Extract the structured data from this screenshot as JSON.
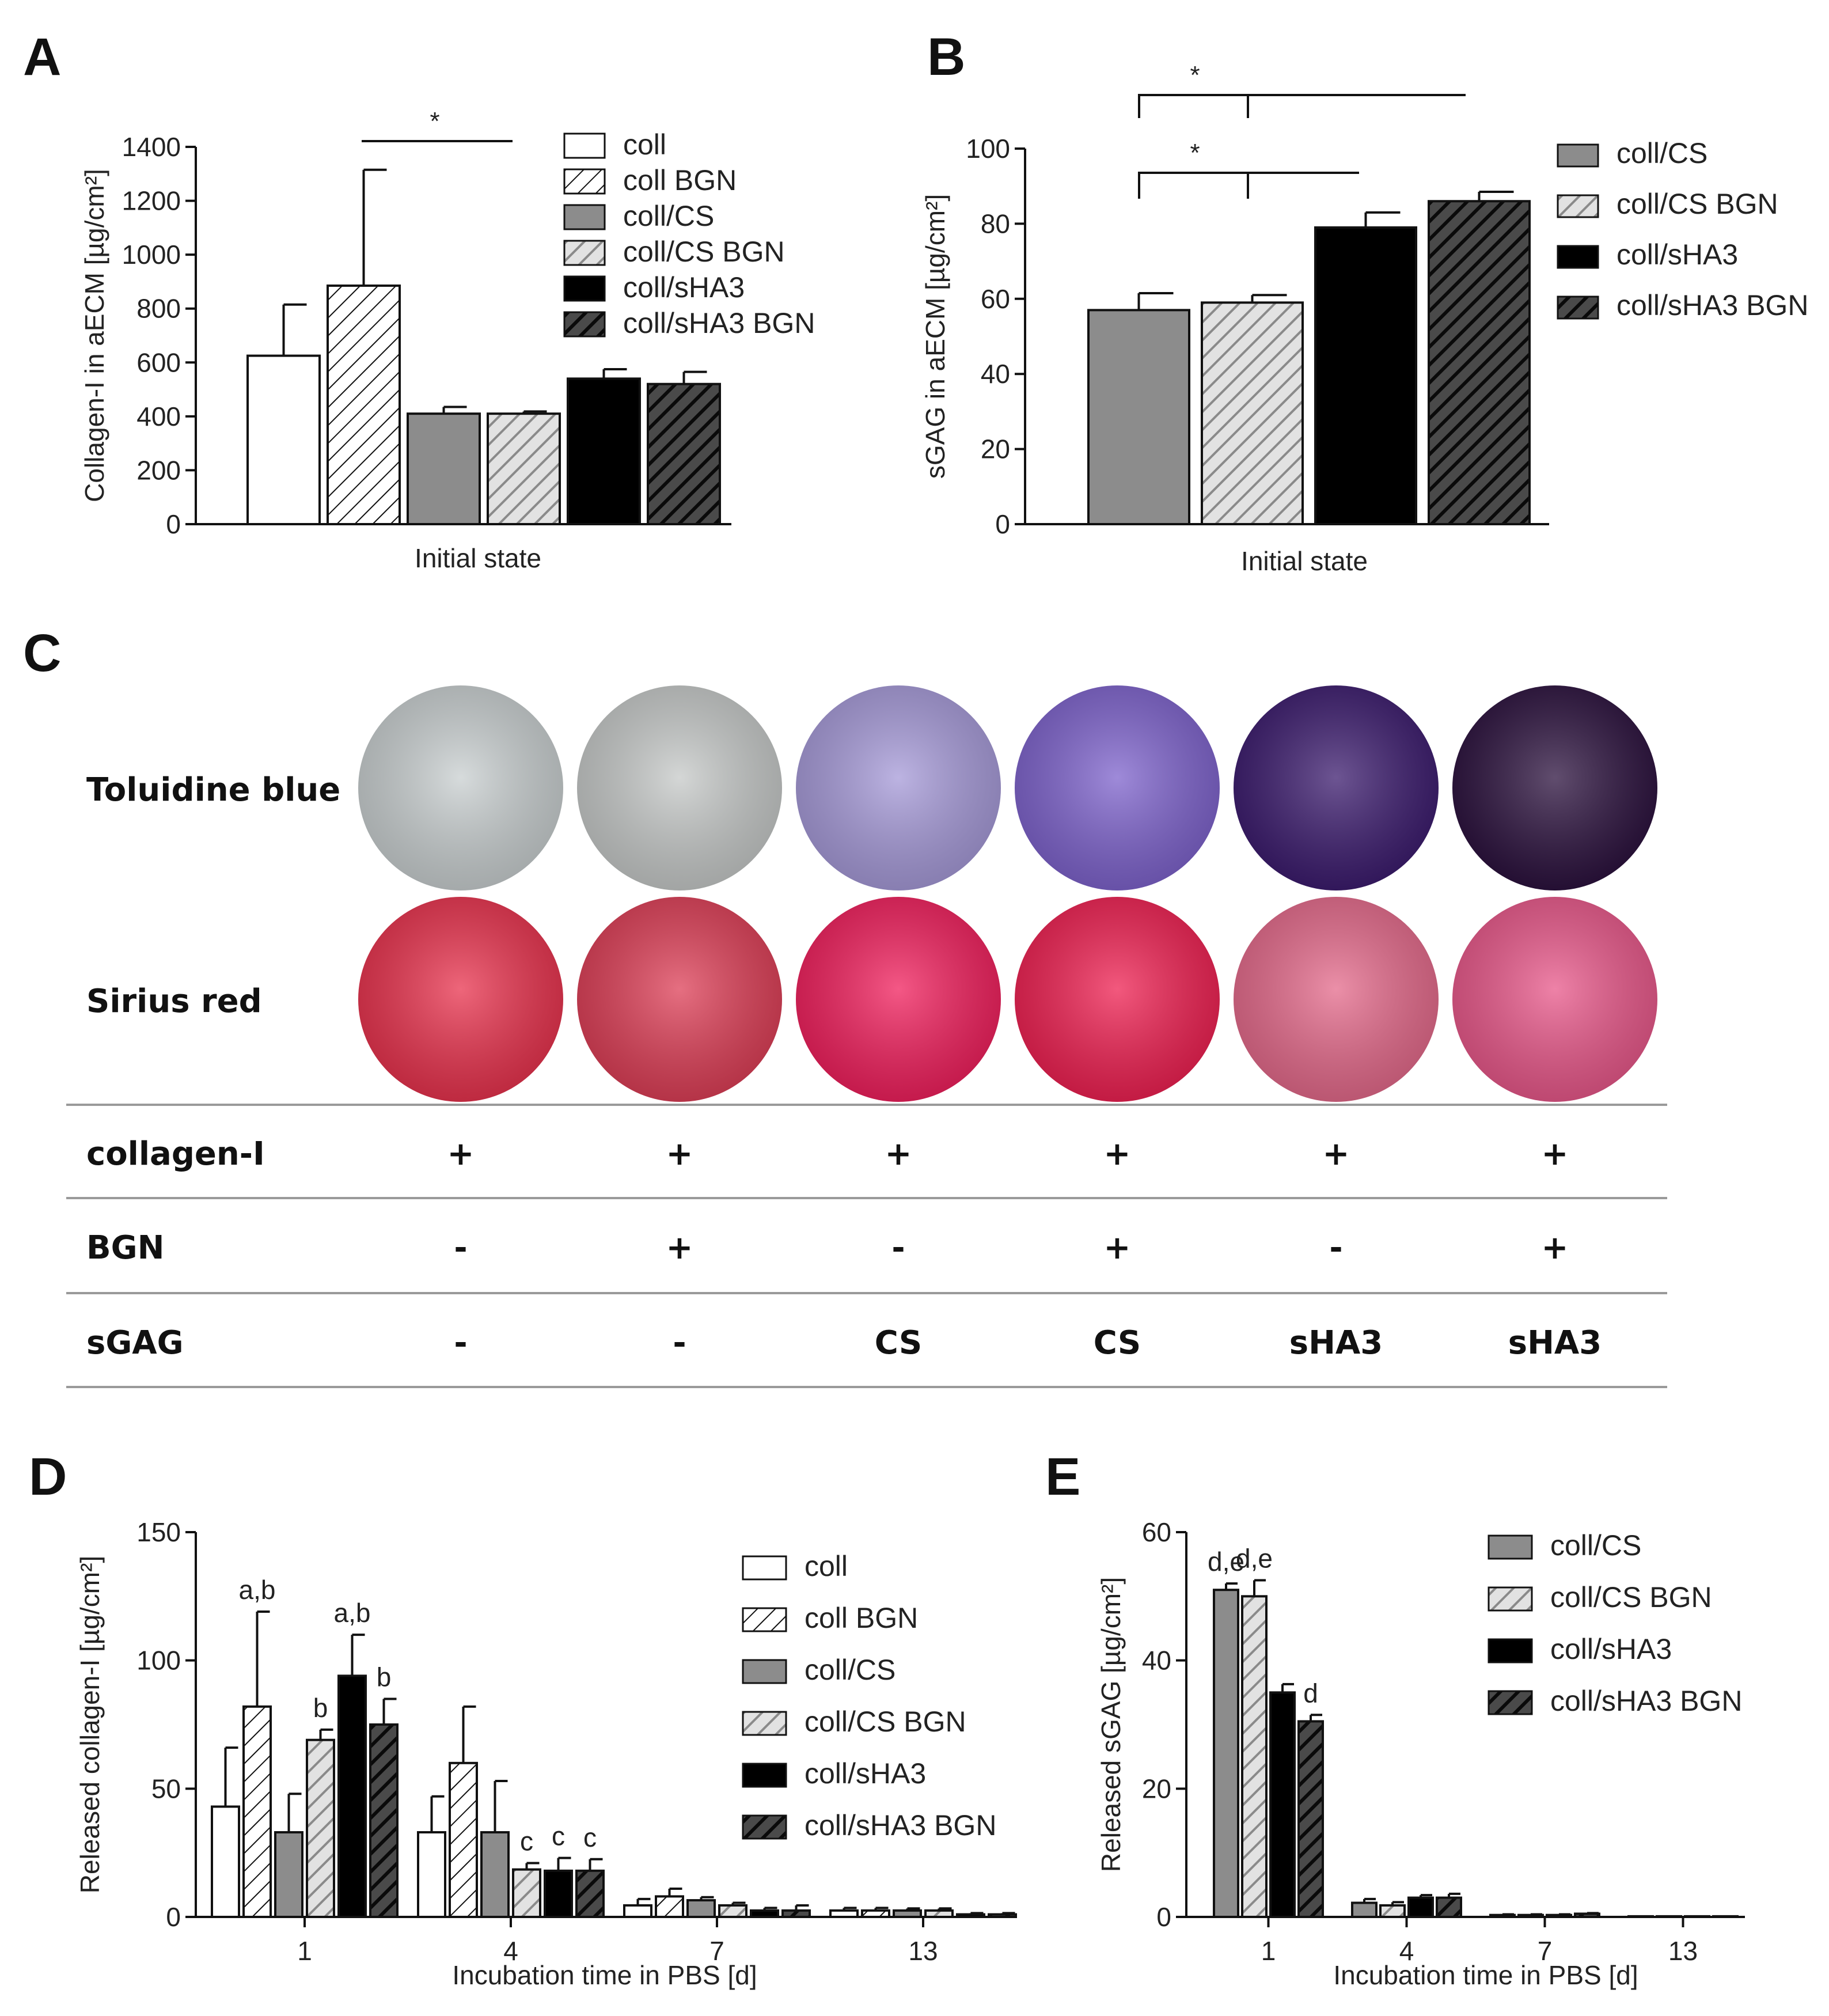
{
  "panels": {
    "A": "A",
    "B": "B",
    "C": "C",
    "D": "D",
    "E": "E"
  },
  "colors": {
    "white": "#ffffff",
    "gray": "#8c8c8c",
    "black": "#000000",
    "hatch_light": "#9a9a9a",
    "hatch_dark": "#111111"
  },
  "chart_data": [
    {
      "id": "A",
      "type": "bar",
      "ylabel": "Collagen-I in aECM [µg/cm²]",
      "xlabel": "Initial state",
      "ylim": [
        0,
        1400
      ],
      "yticks": [
        "0",
        "200",
        "400",
        "600",
        "800",
        "1000",
        "1200",
        "1400"
      ],
      "series": [
        {
          "name": "coll",
          "style": "white",
          "value": 625,
          "err": 190
        },
        {
          "name": "coll BGN",
          "style": "hatch-white",
          "value": 885,
          "err": 430
        },
        {
          "name": "coll/CS",
          "style": "gray",
          "value": 410,
          "err": 25
        },
        {
          "name": "coll/CS BGN",
          "style": "hatch-gray",
          "value": 410,
          "err": 8
        },
        {
          "name": "coll/sHA3",
          "style": "black",
          "value": 540,
          "err": 35
        },
        {
          "name": "coll/sHA3 BGN",
          "style": "hatch-black",
          "value": 520,
          "err": 45
        }
      ],
      "annotations": [
        {
          "text": "*",
          "from": 1,
          "to": 3
        }
      ]
    },
    {
      "id": "B",
      "type": "bar",
      "ylabel": "sGAG in aECM [µg/cm²]",
      "xlabel": "Initial state",
      "ylim": [
        0,
        100
      ],
      "yticks": [
        "0",
        "20",
        "40",
        "60",
        "80",
        "100"
      ],
      "series": [
        {
          "name": "coll/CS",
          "style": "gray",
          "value": 57,
          "err": 4.5
        },
        {
          "name": "coll/CS BGN",
          "style": "hatch-gray",
          "value": 59,
          "err": 2
        },
        {
          "name": "coll/sHA3",
          "style": "black",
          "value": 79,
          "err": 4
        },
        {
          "name": "coll/sHA3 BGN",
          "style": "hatch-black",
          "value": 86,
          "err": 2.5
        }
      ],
      "annotations": [
        {
          "text": "*",
          "level": "top"
        },
        {
          "text": "*",
          "level": "lower"
        }
      ]
    },
    {
      "id": "D",
      "type": "bar",
      "ylabel": "Released collagen-I [µg/cm²]",
      "xlabel": "Incubation time in PBS [d]",
      "ylim": [
        0,
        150
      ],
      "yticks": [
        "0",
        "50",
        "100",
        "150"
      ],
      "categories": [
        "1",
        "4",
        "7",
        "13"
      ],
      "series": [
        {
          "name": "coll",
          "style": "white",
          "values": [
            43,
            33,
            4.5,
            2.5
          ],
          "err": [
            23,
            14,
            2.5,
            1
          ],
          "labels": [
            "",
            "",
            "",
            ""
          ]
        },
        {
          "name": "coll BGN",
          "style": "hatch-white",
          "values": [
            82,
            60,
            8,
            2.5
          ],
          "err": [
            37,
            22,
            3,
            1
          ],
          "labels": [
            "a,b",
            "",
            "",
            ""
          ]
        },
        {
          "name": "coll/CS",
          "style": "gray",
          "values": [
            33,
            33,
            6.5,
            2.5
          ],
          "err": [
            15,
            20,
            1.2,
            0.8
          ],
          "labels": [
            "",
            "",
            "",
            ""
          ]
        },
        {
          "name": "coll/CS BGN",
          "style": "hatch-gray",
          "values": [
            69,
            18.5,
            4.5,
            2.5
          ],
          "err": [
            4,
            2.5,
            1,
            0.8
          ],
          "labels": [
            "b",
            "c",
            "",
            ""
          ]
        },
        {
          "name": "coll/sHA3",
          "style": "black",
          "values": [
            94,
            18,
            2.5,
            1
          ],
          "err": [
            16,
            5,
            1,
            0.5
          ],
          "labels": [
            "a,b",
            "c",
            "",
            ""
          ]
        },
        {
          "name": "coll/sHA3 BGN",
          "style": "hatch-black",
          "values": [
            75,
            18,
            2.5,
            1
          ],
          "err": [
            10,
            4.5,
            2,
            0.5
          ],
          "labels": [
            "b",
            "c",
            "",
            ""
          ]
        }
      ]
    },
    {
      "id": "E",
      "type": "bar",
      "ylabel": "Released sGAG [µg/cm²]",
      "xlabel": "Incubation time in PBS [d]",
      "ylim": [
        0,
        60
      ],
      "yticks": [
        "0",
        "20",
        "40",
        "60"
      ],
      "categories": [
        "1",
        "4",
        "7",
        "13"
      ],
      "series": [
        {
          "name": "coll/CS",
          "style": "gray",
          "values": [
            51,
            2.2,
            0.3,
            0.1
          ],
          "err": [
            1,
            0.6,
            0.1,
            0
          ],
          "labels": [
            "d,e",
            "",
            "",
            ""
          ]
        },
        {
          "name": "coll/CS BGN",
          "style": "hatch-gray",
          "values": [
            50,
            1.8,
            0.3,
            0.1
          ],
          "err": [
            2.5,
            0.5,
            0.1,
            0
          ],
          "labels": [
            "d,e",
            "",
            "",
            ""
          ]
        },
        {
          "name": "coll/sHA3",
          "style": "black",
          "values": [
            35,
            3,
            0.3,
            0.1
          ],
          "err": [
            1.3,
            0.4,
            0.1,
            0
          ],
          "labels": [
            "",
            "",
            "",
            ""
          ]
        },
        {
          "name": "coll/sHA3 BGN",
          "style": "hatch-black",
          "values": [
            30.5,
            3,
            0.5,
            0.1
          ],
          "err": [
            1,
            0.6,
            0.1,
            0
          ],
          "labels": [
            "d",
            "",
            "",
            ""
          ]
        }
      ]
    }
  ],
  "panel_c": {
    "rows": [
      "Toluidine blue",
      "Sirius red"
    ],
    "table": [
      {
        "label": "collagen-I",
        "cells": [
          "+",
          "+",
          "+",
          "+",
          "+",
          "+"
        ]
      },
      {
        "label": "BGN",
        "cells": [
          "-",
          "+",
          "-",
          "+",
          "-",
          "+"
        ]
      },
      {
        "label": "sGAG",
        "cells": [
          "-",
          "-",
          "CS",
          "CS",
          "sHA3",
          "sHA3"
        ]
      }
    ],
    "toluidine_colors": [
      "#c9cfd0",
      "#c6c9c8",
      "#a69ad8",
      "#7e63cc",
      "#3c1c6e",
      "#2c123e"
    ],
    "sirius_colors": [
      "#e8334e",
      "#dd3f57",
      "#f0205d",
      "#ee2152",
      "#e46a8b",
      "#e8588a"
    ]
  }
}
